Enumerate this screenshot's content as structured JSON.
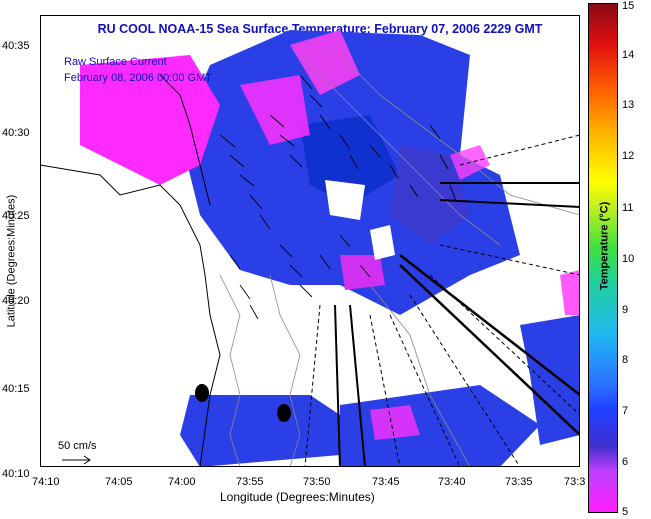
{
  "title": "RU COOL  NOAA-15  Sea Surface Temperature:  February 07, 2006 2229 GMT",
  "overlay": {
    "line1": "Raw Surface Current",
    "line2": "February 08, 2006 00:00 GMT"
  },
  "axes": {
    "xlabel": "Longitude (Degrees:Minutes)",
    "ylabel": "Latitude (Degrees:Minutes)",
    "x_ticks": [
      "74:10",
      "74:05",
      "74:00",
      "73:55",
      "73:50",
      "73:45",
      "73:40",
      "73:35",
      "73:3"
    ],
    "y_ticks": [
      "40:35",
      "40:30",
      "40:25",
      "40:20",
      "40:15",
      "40:10"
    ]
  },
  "scale_arrow_label": "50 cm/s",
  "colorbar": {
    "label": "Temperature (°C)",
    "ticks": [
      "15",
      "14",
      "13",
      "12",
      "11",
      "10",
      "9",
      "8",
      "7",
      "6",
      "5"
    ]
  },
  "colors": {
    "title": "#1010c0",
    "cold": "#ff20ff",
    "mid": "#2040ff",
    "warm": "#8b0a14",
    "land": "#ffffff"
  },
  "markers": [
    "station-1",
    "station-2"
  ]
}
